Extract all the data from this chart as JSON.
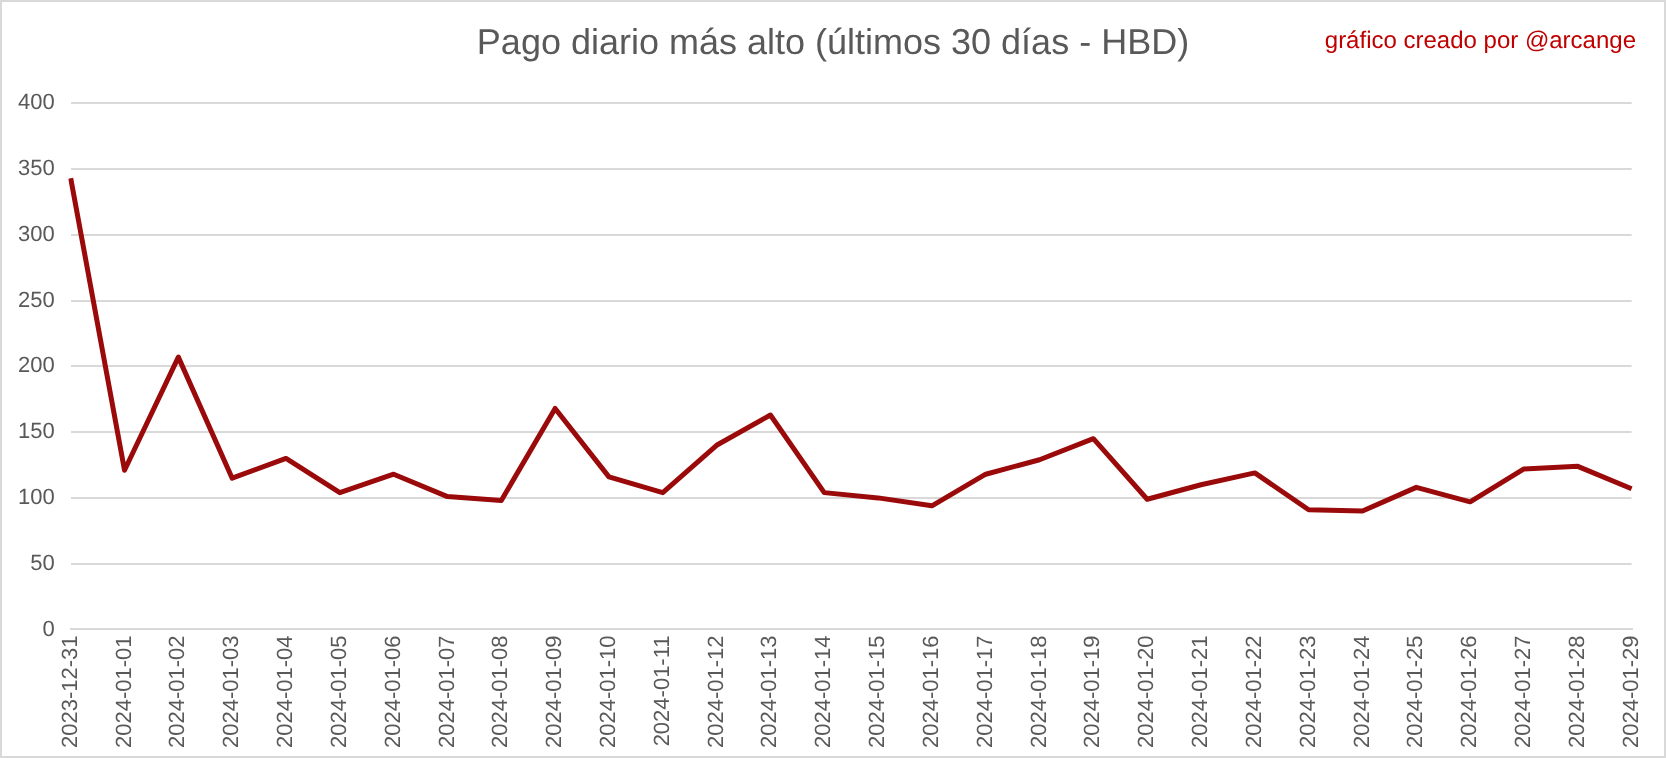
{
  "chart_data": {
    "type": "line",
    "title": "Pago diario más alto (últimos 30 días - HBD)",
    "annotations": [
      "gráfico creado por @arcange"
    ],
    "categories": [
      "2023-12-31",
      "2024-01-01",
      "2024-01-02",
      "2024-01-03",
      "2024-01-04",
      "2024-01-05",
      "2024-01-06",
      "2024-01-07",
      "2024-01-08",
      "2024-01-09",
      "2024-01-10",
      "2024-01-11",
      "2024-01-12",
      "2024-01-13",
      "2024-01-14",
      "2024-01-15",
      "2024-01-16",
      "2024-01-17",
      "2024-01-18",
      "2024-01-19",
      "2024-01-20",
      "2024-01-21",
      "2024-01-22",
      "2024-01-23",
      "2024-01-24",
      "2024-01-25",
      "2024-01-26",
      "2024-01-27",
      "2024-01-28",
      "2024-01-29"
    ],
    "series": [
      {
        "color": "#9b0a0a",
        "values": [
          343,
          121,
          207,
          115,
          130,
          104,
          118,
          101,
          98,
          168,
          116,
          104,
          140,
          163,
          104,
          100,
          94,
          118,
          129,
          145,
          99,
          110,
          119,
          91,
          90,
          108,
          97,
          122,
          124,
          107
        ]
      }
    ],
    "ylim": [
      0,
      400
    ],
    "yticks": [
      0,
      50,
      100,
      150,
      200,
      250,
      300,
      350,
      400
    ],
    "grid": "y",
    "legend": false,
    "marker": "none",
    "line_style": "solid"
  }
}
